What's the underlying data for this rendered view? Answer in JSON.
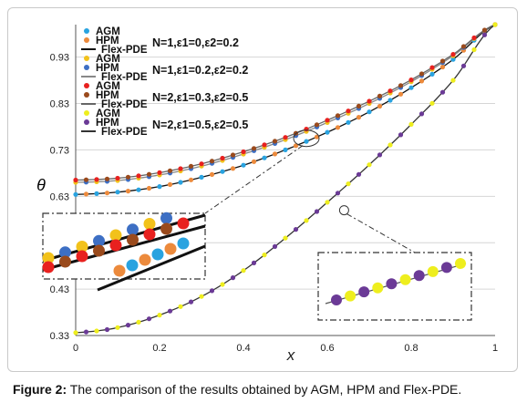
{
  "chart_data": {
    "type": "line",
    "xlabel": "x",
    "ylabel": "θ",
    "xlim": [
      0,
      1
    ],
    "ylim": [
      0.33,
      1.0
    ],
    "xticks": [
      "0",
      "0.2",
      "0.4",
      "0.6",
      "0.8",
      "1"
    ],
    "yticks": [
      "0.33",
      "0.43",
      "0.53",
      "0.63",
      "0.73",
      "0.83",
      "0.93"
    ],
    "grid": "horizontal",
    "legend_position": "top-left",
    "legend_groups": [
      {
        "annotation": "N=1,ε1=0,ε2=0.2",
        "entries": [
          {
            "label": "AGM",
            "color": "#29a3e0",
            "marker": "dot"
          },
          {
            "label": "HPM",
            "color": "#ec8a3c",
            "marker": "dot"
          },
          {
            "label": "Flex-PDE",
            "color": "#111111",
            "marker": "line"
          }
        ]
      },
      {
        "annotation": "N=1,ε1=0.2,ε2=0.2",
        "entries": [
          {
            "label": "AGM",
            "color": "#f2c21b",
            "marker": "dot"
          },
          {
            "label": "HPM",
            "color": "#3d6fc4",
            "marker": "dot"
          },
          {
            "label": "Flex-PDE",
            "color": "#888888",
            "marker": "line"
          }
        ]
      },
      {
        "annotation": "N=2,ε1=0.3,ε2=0.5",
        "entries": [
          {
            "label": "AGM",
            "color": "#e8211f",
            "marker": "dot"
          },
          {
            "label": "HPM",
            "color": "#9a4a1c",
            "marker": "dot"
          },
          {
            "label": "Flex-PDE",
            "color": "#666666",
            "marker": "line"
          }
        ]
      },
      {
        "annotation": "N=2,ε1=0.5,ε2=0.5",
        "entries": [
          {
            "label": "AGM",
            "color": "#eeee1e",
            "marker": "dot"
          },
          {
            "label": "HPM",
            "color": "#6b3a96",
            "marker": "dot"
          },
          {
            "label": "Flex-PDE",
            "color": "#333333",
            "marker": "line"
          }
        ]
      }
    ],
    "x": [
      0,
      0.1,
      0.2,
      0.3,
      0.4,
      0.5,
      0.6,
      0.7,
      0.8,
      0.9,
      1.0
    ],
    "series": [
      {
        "group": 0,
        "values": [
          0.634,
          0.639,
          0.651,
          0.671,
          0.697,
          0.73,
          0.768,
          0.812,
          0.864,
          0.925,
          1.0
        ]
      },
      {
        "group": 1,
        "values": [
          0.66,
          0.664,
          0.676,
          0.695,
          0.721,
          0.752,
          0.789,
          0.83,
          0.877,
          0.933,
          1.0
        ]
      },
      {
        "group": 2,
        "values": [
          0.665,
          0.669,
          0.681,
          0.7,
          0.726,
          0.757,
          0.794,
          0.835,
          0.881,
          0.936,
          1.0
        ]
      },
      {
        "group": 3,
        "values": [
          0.336,
          0.347,
          0.374,
          0.414,
          0.47,
          0.54,
          0.617,
          0.698,
          0.785,
          0.88,
          1.0
        ]
      }
    ]
  },
  "caption": {
    "label": "Figure 2:",
    "text": " The comparison of the results obtained by AGM, HPM and Flex-PDE."
  }
}
